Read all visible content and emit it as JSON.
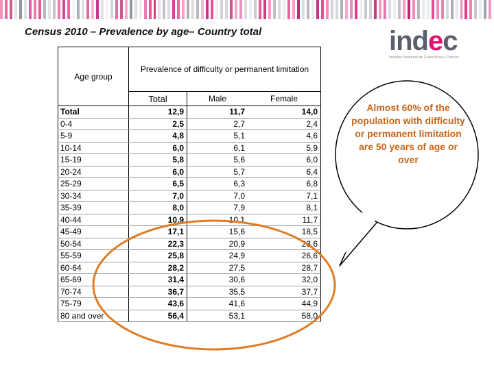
{
  "title": "Census 2010 – Prevalence by age– Country total",
  "logo": {
    "word_start": "ind",
    "word_accent": "e",
    "word_end": "c",
    "subtitle": "Instituto Nacional de Estadística y Censos"
  },
  "table": {
    "age_header": "Age group",
    "prevalence_header": "Prevalence of difficulty or permanent limitation",
    "col_total": "Total",
    "col_male": "Male",
    "col_female": "Female",
    "rows": [
      {
        "age": "Total",
        "total": "12,9",
        "male": "11,7",
        "female": "14,0"
      },
      {
        "age": "0-4",
        "total": "2,5",
        "male": "2,7",
        "female": "2,4"
      },
      {
        "age": "5-9",
        "total": "4,8",
        "male": "5,1",
        "female": "4,6"
      },
      {
        "age": "10-14",
        "total": "6,0",
        "male": "6,1",
        "female": "5,9"
      },
      {
        "age": "15-19",
        "total": "5,8",
        "male": "5,6",
        "female": "6,0"
      },
      {
        "age": "20-24",
        "total": "6,0",
        "male": "5,7",
        "female": "6,4"
      },
      {
        "age": "25-29",
        "total": "6,5",
        "male": "6,3",
        "female": "6,8"
      },
      {
        "age": "30-34",
        "total": "7,0",
        "male": "7,0",
        "female": "7,1"
      },
      {
        "age": "35-39",
        "total": "8,0",
        "male": "7,9",
        "female": "8,1"
      },
      {
        "age": "40-44",
        "total": "10,9",
        "male": "10,1",
        "female": "11,7"
      },
      {
        "age": "45-49",
        "total": "17,1",
        "male": "15,6",
        "female": "18,5"
      },
      {
        "age": "50-54",
        "total": "22,3",
        "male": "20,9",
        "female": "23,6"
      },
      {
        "age": "55-59",
        "total": "25,8",
        "male": "24,9",
        "female": "26,6"
      },
      {
        "age": "60-64",
        "total": "28,2",
        "male": "27,5",
        "female": "28,7"
      },
      {
        "age": "65-69",
        "total": "31,4",
        "male": "30,6",
        "female": "32,0"
      },
      {
        "age": "70-74",
        "total": "36,7",
        "male": "35,5",
        "female": "37,7"
      },
      {
        "age": "75-79",
        "total": "43,6",
        "male": "41,6",
        "female": "44,9"
      },
      {
        "age": "80 and over",
        "total": "56,4",
        "male": "53,1",
        "female": "58,0"
      }
    ]
  },
  "callout": "Almost 60% of the population with difficulty or permanent limitation are 50 years of age or over",
  "colors": {
    "accent_orange": "#e07b22",
    "callout_text": "#c8651a",
    "brand_pink": "#e0116f",
    "logo_gray": "#5a5f6e"
  }
}
